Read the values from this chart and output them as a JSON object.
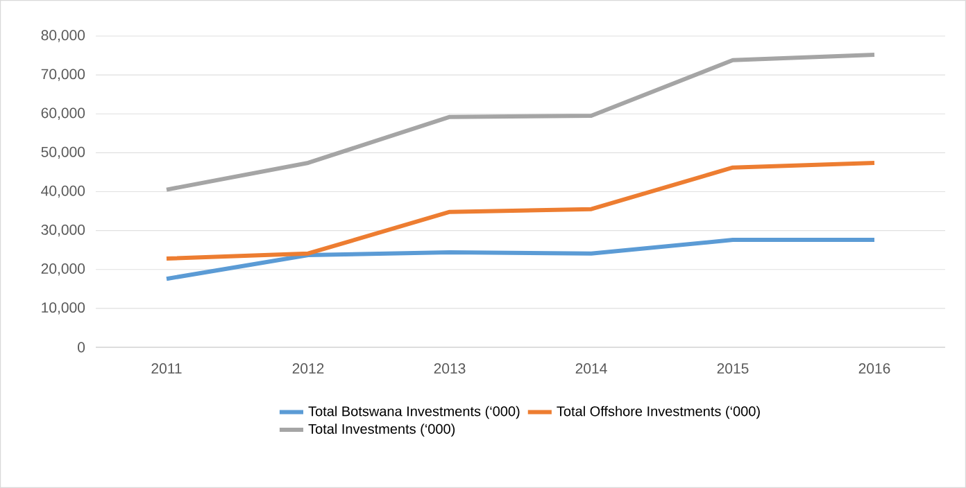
{
  "chart_data": {
    "type": "line",
    "categories": [
      "2011",
      "2012",
      "2013",
      "2014",
      "2015",
      "2016"
    ],
    "series": [
      {
        "name": "Total Botswana Investments (‘000)",
        "color": "#5b9bd5",
        "values": [
          17600,
          23700,
          24400,
          24100,
          27600,
          27600
        ]
      },
      {
        "name": "Total Offshore Investments (‘000)",
        "color": "#ed7d31",
        "values": [
          22800,
          24100,
          34800,
          35500,
          46200,
          47400
        ]
      },
      {
        "name": "Total Investments (‘000)",
        "color": "#a5a5a5",
        "values": [
          40500,
          47400,
          59200,
          59500,
          73800,
          75200
        ]
      }
    ],
    "ylim": [
      0,
      80000
    ],
    "yticks": [
      0,
      {
        "value": 10000,
        "label": "10,000"
      },
      {
        "value": 20000,
        "label": "20,000"
      },
      {
        "value": 30000,
        "label": "30,000"
      },
      {
        "value": 40000,
        "label": "40,000"
      },
      {
        "value": 50000,
        "label": "50,000"
      },
      {
        "value": 60000,
        "label": "60,000"
      },
      {
        "value": 70000,
        "label": "70,000"
      },
      {
        "value": 80000,
        "label": "80,000"
      }
    ],
    "grid": "y",
    "legend": "bottom",
    "marker": "none",
    "line_style": "solid"
  }
}
